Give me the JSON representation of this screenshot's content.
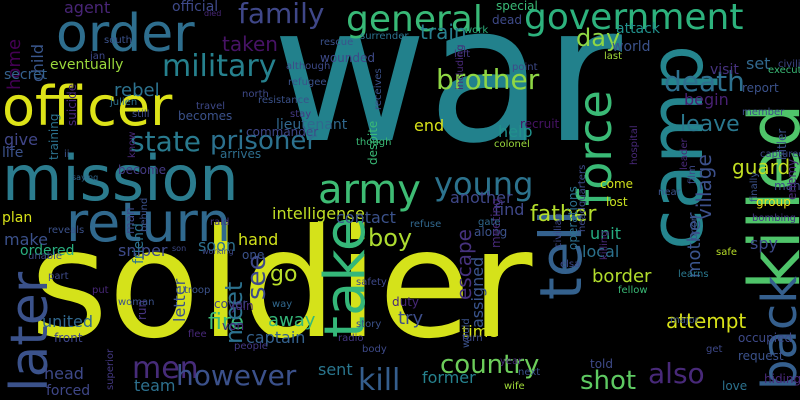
{
  "words": [
    {
      "text": "war",
      "color": "#22818c",
      "rotated": false
    },
    {
      "text": "soldier",
      "color": "#d5e21a",
      "rotated": false
    },
    {
      "text": "mission",
      "color": "#2b7c8e",
      "rotated": false
    },
    {
      "text": "officer",
      "color": "#dde318",
      "rotated": false
    },
    {
      "text": "order",
      "color": "#2e6e8e",
      "rotated": false
    },
    {
      "text": "killed",
      "color": "#4fc46a",
      "rotated": true
    },
    {
      "text": "camp",
      "color": "#25858e",
      "rotated": true
    },
    {
      "text": "army",
      "color": "#3ebc74",
      "rotated": false
    },
    {
      "text": "return",
      "color": "#30698e",
      "rotated": false
    },
    {
      "text": "take",
      "color": "#35b779",
      "rotated": true
    },
    {
      "text": "tell",
      "color": "#34618d",
      "rotated": true
    },
    {
      "text": "force",
      "color": "#3aba76",
      "rotated": true
    },
    {
      "text": "back",
      "color": "#355f8d",
      "rotated": true
    },
    {
      "text": "later",
      "color": "#3b528b",
      "rotated": true
    },
    {
      "text": "general",
      "color": "#38b977",
      "rotated": false
    },
    {
      "text": "government",
      "color": "#2db27d",
      "rotated": false
    },
    {
      "text": "young",
      "color": "#2c738e",
      "rotated": false
    },
    {
      "text": "military",
      "color": "#26818e",
      "rotated": false
    },
    {
      "text": "family",
      "color": "#3f4788",
      "rotated": false
    },
    {
      "text": "state",
      "color": "#297a8e",
      "rotated": false
    },
    {
      "text": "prisoner",
      "color": "#2c718e",
      "rotated": false
    },
    {
      "text": "death",
      "color": "#2d708e",
      "rotated": false
    },
    {
      "text": "brother",
      "color": "#8fd744",
      "rotated": false
    },
    {
      "text": "men",
      "color": "#472c7a",
      "rotated": false
    },
    {
      "text": "however",
      "color": "#3b518b",
      "rotated": false
    },
    {
      "text": "kill",
      "color": "#355e8d",
      "rotated": false
    },
    {
      "text": "country",
      "color": "#6ccd5a",
      "rotated": false
    },
    {
      "text": "also",
      "color": "#482979",
      "rotated": false
    },
    {
      "text": "shot",
      "color": "#5ec962",
      "rotated": false
    },
    {
      "text": "day",
      "color": "#90d743",
      "rotated": false
    },
    {
      "text": "father",
      "color": "#b5de2b",
      "rotated": false
    },
    {
      "text": "boy",
      "color": "#addc30",
      "rotated": false
    },
    {
      "text": "see",
      "color": "#3e4989",
      "rotated": true
    },
    {
      "text": "go",
      "color": "#b8de29",
      "rotated": false
    },
    {
      "text": "fire",
      "color": "#3aba76",
      "rotated": false
    },
    {
      "text": "meet",
      "color": "#2c728e",
      "rotated": true
    },
    {
      "text": "escape",
      "color": "#46327e",
      "rotated": true
    },
    {
      "text": "leave",
      "color": "#2a788e",
      "rotated": false
    },
    {
      "text": "village",
      "color": "#3c508b",
      "rotated": true
    },
    {
      "text": "guard",
      "color": "#c2df23",
      "rotated": false
    },
    {
      "text": "mother",
      "color": "#3a548c",
      "rotated": true
    },
    {
      "text": "attempt",
      "color": "#d8e219",
      "rotated": false
    },
    {
      "text": "taken",
      "color": "#471365",
      "rotated": false
    },
    {
      "text": "home",
      "color": "#440154",
      "rotated": true
    },
    {
      "text": "child",
      "color": "#39568c",
      "rotated": true
    },
    {
      "text": "rebel",
      "color": "#2c728e",
      "rotated": false
    },
    {
      "text": "train",
      "color": "#277f8e",
      "rotated": false
    },
    {
      "text": "attack",
      "color": "#21918c",
      "rotated": false
    },
    {
      "text": "world",
      "color": "#3b528b",
      "rotated": false
    },
    {
      "text": "begin",
      "color": "#482173",
      "rotated": false
    },
    {
      "text": "help",
      "color": "#21918c",
      "rotated": false
    },
    {
      "text": "find",
      "color": "#3f4788",
      "rotated": false
    },
    {
      "text": "unit",
      "color": "#26ad81",
      "rotated": false
    },
    {
      "text": "border",
      "color": "#b2dd2d",
      "rotated": false
    },
    {
      "text": "local",
      "color": "#2c728e",
      "rotated": false
    },
    {
      "text": "hand",
      "color": "#d2e21b",
      "rotated": false
    },
    {
      "text": "soon",
      "color": "#2d718e",
      "rotated": false
    },
    {
      "text": "sniper",
      "color": "#3e4a89",
      "rotated": false
    },
    {
      "text": "away",
      "color": "#35b779",
      "rotated": false
    },
    {
      "text": "captain",
      "color": "#34618d",
      "rotated": false
    },
    {
      "text": "try",
      "color": "#3d4e8a",
      "rotated": false
    },
    {
      "text": "former",
      "color": "#26828e",
      "rotated": false
    },
    {
      "text": "time",
      "color": "#d5e21a",
      "rotated": false
    },
    {
      "text": "sent",
      "color": "#2a768e",
      "rotated": false
    },
    {
      "text": "team",
      "color": "#2d708e",
      "rotated": false
    },
    {
      "text": "head",
      "color": "#3e4989",
      "rotated": false
    },
    {
      "text": "forced",
      "color": "#3f4788",
      "rotated": false
    },
    {
      "text": "united",
      "color": "#31688e",
      "rotated": false
    },
    {
      "text": "make",
      "color": "#3b518b",
      "rotated": false
    },
    {
      "text": "plan",
      "color": "#d8e219",
      "rotated": false
    },
    {
      "text": "give",
      "color": "#404688",
      "rotated": false
    },
    {
      "text": "life",
      "color": "#3b528b",
      "rotated": false
    },
    {
      "text": "secret",
      "color": "#34618d",
      "rotated": false
    },
    {
      "text": "agent",
      "color": "#482576",
      "rotated": false
    },
    {
      "text": "eventually",
      "color": "#9bd93c",
      "rotated": false
    },
    {
      "text": "ordered",
      "color": "#29af7f",
      "rotated": false
    },
    {
      "text": "intelligence",
      "color": "#c0df25",
      "rotated": false
    },
    {
      "text": "contact",
      "color": "#3b528b",
      "rotated": false
    },
    {
      "text": "another",
      "color": "#3f4788",
      "rotated": false
    },
    {
      "text": "spy",
      "color": "#3e4a89",
      "rotated": false
    },
    {
      "text": "group",
      "color": "#ece51b",
      "rotated": false
    },
    {
      "text": "lost",
      "color": "#c8e020",
      "rotated": false
    },
    {
      "text": "come",
      "color": "#d0e11c",
      "rotated": false
    },
    {
      "text": "member",
      "color": "#3e4c8a",
      "rotated": false
    },
    {
      "text": "report",
      "color": "#3b528b",
      "rotated": false
    },
    {
      "text": "visit",
      "color": "#46327e",
      "rotated": false
    },
    {
      "text": "set",
      "color": "#31688e",
      "rotated": false
    },
    {
      "text": "last",
      "color": "#a0da39",
      "rotated": false
    },
    {
      "text": "recruit",
      "color": "#471365",
      "rotated": false
    },
    {
      "text": "colonel",
      "color": "#9bd93c",
      "rotated": false
    },
    {
      "text": "point",
      "color": "#3e4a89",
      "rotated": false
    },
    {
      "text": "left",
      "color": "#443983",
      "rotated": false
    },
    {
      "text": "end",
      "color": "#d8e219",
      "rotated": false
    },
    {
      "text": "despite",
      "color": "#3aba76",
      "rotated": true
    },
    {
      "text": "assigned",
      "color": "#3a548c",
      "rotated": true
    },
    {
      "text": "operations",
      "color": "#2c718e",
      "rotated": true
    },
    {
      "text": "training",
      "color": "#2c728e",
      "rotated": true
    },
    {
      "text": "suicide",
      "color": "#482979",
      "rotated": true
    },
    {
      "text": "letter",
      "color": "#3b528b",
      "rotated": true
    },
    {
      "text": "friend",
      "color": "#2c728e",
      "rotated": true
    },
    {
      "text": "man",
      "color": "#3e4a89",
      "rotated": true
    },
    {
      "text": "run",
      "color": "#463480",
      "rotated": true
    },
    {
      "text": "join",
      "color": "#482878",
      "rotated": false
    },
    {
      "text": "cover",
      "color": "#414487",
      "rotated": false
    },
    {
      "text": "front",
      "color": "#3f4788",
      "rotated": false
    },
    {
      "text": "arrives",
      "color": "#2e6e8e",
      "rotated": false
    },
    {
      "text": "become",
      "color": "#443a83",
      "rotated": false
    },
    {
      "text": "becomes",
      "color": "#3b528b",
      "rotated": false
    },
    {
      "text": "commander",
      "color": "#3f4788",
      "rotated": false
    },
    {
      "text": "lieutenant",
      "color": "#31688e",
      "rotated": false
    },
    {
      "text": "resistance",
      "color": "#3b528b",
      "rotated": false
    },
    {
      "text": "official",
      "color": "#3e4989",
      "rotated": false
    },
    {
      "text": "died",
      "color": "#482878",
      "rotated": false
    },
    {
      "text": "wounded",
      "color": "#3e4a89",
      "rotated": false
    },
    {
      "text": "rescue",
      "color": "#3b528b",
      "rotated": false
    },
    {
      "text": "surrender",
      "color": "#2c728e",
      "rotated": false
    },
    {
      "text": "work",
      "color": "#2db27d",
      "rotated": false
    },
    {
      "text": "dead",
      "color": "#3e4a89",
      "rotated": false
    },
    {
      "text": "special",
      "color": "#3aba76",
      "rotated": false
    },
    {
      "text": "executed",
      "color": "#3aba76",
      "rotated": false
    },
    {
      "text": "civilian",
      "color": "#3e4a89",
      "rotated": false
    },
    {
      "text": "along",
      "color": "#3b528b",
      "rotated": false
    },
    {
      "text": "meeting",
      "color": "#482979",
      "rotated": true
    },
    {
      "text": "civilian",
      "color": "#3e4989",
      "rotated": true
    },
    {
      "text": "safe",
      "color": "#b8de29",
      "rotated": false
    },
    {
      "text": "fellow",
      "color": "#3aba76",
      "rotated": false
    },
    {
      "text": "learns",
      "color": "#2a788e",
      "rotated": false
    },
    {
      "text": "told",
      "color": "#3e4a89",
      "rotated": false
    },
    {
      "text": "request",
      "color": "#3b528b",
      "rotated": false
    },
    {
      "text": "hiding",
      "color": "#482878",
      "rotated": false
    },
    {
      "text": "love",
      "color": "#2c728e",
      "rotated": false
    },
    {
      "text": "get",
      "color": "#3e4989",
      "rotated": false
    },
    {
      "text": "wife",
      "color": "#a0da39",
      "rotated": false
    },
    {
      "text": "gate",
      "color": "#31688e",
      "rotated": false
    },
    {
      "text": "though",
      "color": "#3aba76",
      "rotated": false
    },
    {
      "text": "refugee",
      "color": "#3b528b",
      "rotated": false
    },
    {
      "text": "north",
      "color": "#3e4a89",
      "rotated": false
    },
    {
      "text": "south",
      "color": "#3b528b",
      "rotated": false
    },
    {
      "text": "jan",
      "color": "#3e4989",
      "rotated": false
    },
    {
      "text": "julien",
      "color": "#2c728e",
      "rotated": false
    },
    {
      "text": "still",
      "color": "#3e4989",
      "rotated": false
    },
    {
      "text": "know",
      "color": "#482979",
      "rotated": true
    },
    {
      "text": "saying",
      "color": "#31688e",
      "rotated": false
    },
    {
      "text": "unable",
      "color": "#3e4a89",
      "rotated": false
    },
    {
      "text": "reveals",
      "color": "#3b528b",
      "rotated": false
    },
    {
      "text": "raid",
      "color": "#443983",
      "rotated": false
    },
    {
      "text": "one",
      "color": "#3b528b",
      "rotated": false
    },
    {
      "text": "son",
      "color": "#3e4a89",
      "rotated": false
    },
    {
      "text": "troop",
      "color": "#3b528b",
      "rotated": false
    },
    {
      "text": "way",
      "color": "#31688e",
      "rotated": false
    },
    {
      "text": "flee",
      "color": "#482979",
      "rotated": false
    },
    {
      "text": "people",
      "color": "#443983",
      "rotated": false
    },
    {
      "text": "body",
      "color": "#3e4a89",
      "rotated": false
    },
    {
      "text": "duty",
      "color": "#482878",
      "rotated": false
    },
    {
      "text": "story",
      "color": "#3b528b",
      "rotated": false
    },
    {
      "text": "safety",
      "color": "#3e4989",
      "rotated": false
    },
    {
      "text": "radio",
      "color": "#443983",
      "rotated": false
    },
    {
      "text": "would",
      "color": "#3b528b",
      "rotated": true
    },
    {
      "text": "turn",
      "color": "#3e4a89",
      "rotated": false
    },
    {
      "text": "year",
      "color": "#482878",
      "rotated": false
    },
    {
      "text": "next",
      "color": "#3b528b",
      "rotated": false
    },
    {
      "text": "occupied",
      "color": "#3e4a89",
      "rotated": false
    },
    {
      "text": "major",
      "color": "#3b528b",
      "rotated": false
    },
    {
      "text": "leader",
      "color": "#482979",
      "rotated": true
    },
    {
      "text": "captured",
      "color": "#3e4989",
      "rotated": false
    },
    {
      "text": "hitler",
      "color": "#3b528b",
      "rotated": true
    },
    {
      "text": "many",
      "color": "#3e4a89",
      "rotated": false
    },
    {
      "text": "enemy",
      "color": "#482878",
      "rotated": true
    },
    {
      "text": "bombing",
      "color": "#443983",
      "rotated": false
    },
    {
      "text": "finally",
      "color": "#3b528b",
      "rotated": true
    },
    {
      "text": "hospital",
      "color": "#482979",
      "rotated": true
    },
    {
      "text": "film",
      "color": "#3e4a89",
      "rotated": true
    },
    {
      "text": "near",
      "color": "#3b528b",
      "rotated": false
    },
    {
      "text": "refuse",
      "color": "#31688e",
      "rotated": false
    },
    {
      "text": "headquarters",
      "color": "#3e4a89",
      "rotated": true
    },
    {
      "text": "including",
      "color": "#482878",
      "rotated": true
    },
    {
      "text": "receives",
      "color": "#3b528b",
      "rotated": true
    },
    {
      "text": "although",
      "color": "#3e4a89",
      "rotated": false
    },
    {
      "text": "stay",
      "color": "#443983",
      "rotated": false
    },
    {
      "text": "travel",
      "color": "#3e4989",
      "rotated": false
    },
    {
      "text": "behind",
      "color": "#3b528b",
      "rotated": true
    },
    {
      "text": "part",
      "color": "#3e4a89",
      "rotated": false
    },
    {
      "text": "put",
      "color": "#482878",
      "rotated": false
    },
    {
      "text": "woman",
      "color": "#3b528b",
      "rotated": false
    },
    {
      "text": "superior",
      "color": "#443983",
      "rotated": true
    },
    {
      "text": "working",
      "color": "#3e4a89",
      "rotated": false
    },
    {
      "text": "ii",
      "color": "#3b528b",
      "rotated": false
    },
    {
      "text": "von",
      "color": "#482878",
      "rotated": false
    },
    {
      "text": "elsa",
      "color": "#3e4a89",
      "rotated": false
    },
    {
      "text": "killing",
      "color": "#482979",
      "rotated": true
    },
    {
      "text": "upon",
      "color": "#3b528b",
      "rotated": true
    },
    {
      "text": "plan",
      "color": "#3e4a89",
      "rotated": false
    },
    {
      "text": "funeral",
      "color": "#482878",
      "rotated": false
    },
    {
      "text": "given",
      "color": "#443983",
      "rotated": false
    },
    {
      "text": "ship",
      "color": "#3b528b",
      "rotated": false
    }
  ]
}
